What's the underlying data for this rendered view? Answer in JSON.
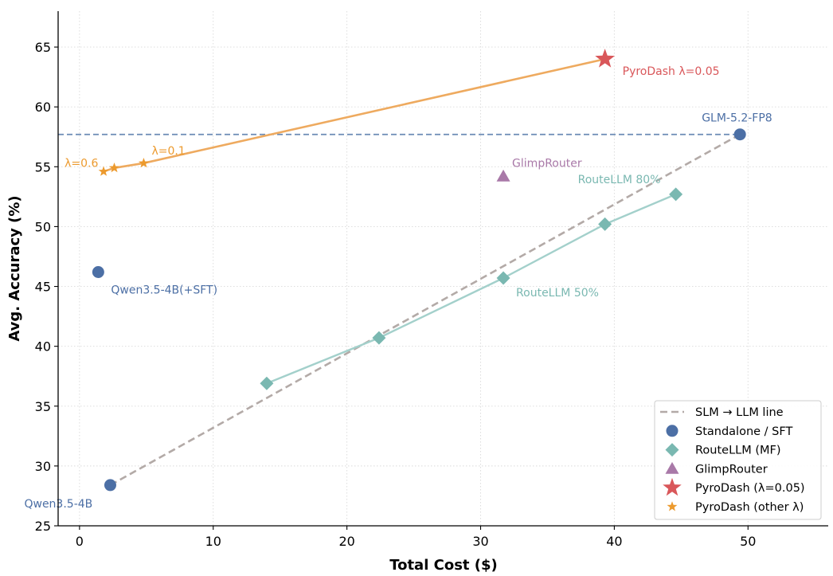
{
  "chart_data": {
    "type": "scatter",
    "xlabel": "Total Cost ($)",
    "ylabel": "Avg. Accuracy (%)",
    "xlim": [
      -1.6,
      56
    ],
    "ylim": [
      25,
      68
    ],
    "xticks": [
      0,
      10,
      20,
      30,
      40,
      50
    ],
    "yticks": [
      25,
      30,
      35,
      40,
      45,
      50,
      55,
      60,
      65
    ],
    "grid": true,
    "legend_placement": "lower-right",
    "reference_lines": {
      "slm_llm_line": {
        "x": [
          2.3,
          49.4
        ],
        "y": [
          28.4,
          57.7
        ],
        "color": "#b3aaa7"
      },
      "llm_hline": {
        "y": 57.7,
        "x_end": 49.4,
        "color": "#6b8bb5"
      }
    },
    "series": [
      {
        "name": "Standalone / SFT",
        "marker": "circle",
        "color": "#4c6fa5",
        "points": [
          {
            "x": 2.3,
            "y": 28.4,
            "label": "Qwen3.5-4B"
          },
          {
            "x": 1.4,
            "y": 46.2,
            "label": "Qwen3.5-4B(+SFT)"
          },
          {
            "x": 49.4,
            "y": 57.7,
            "label": "GLM-5.2-FP8"
          }
        ]
      },
      {
        "name": "RouteLLM (MF)",
        "marker": "diamond",
        "color": "#7ab8b1",
        "connected": true,
        "points": [
          {
            "x": 14.0,
            "y": 36.9,
            "label": ""
          },
          {
            "x": 22.4,
            "y": 40.7,
            "label": ""
          },
          {
            "x": 31.7,
            "y": 45.7,
            "label": "RouteLLM 50%"
          },
          {
            "x": 39.3,
            "y": 50.2,
            "label": ""
          },
          {
            "x": 44.6,
            "y": 52.7,
            "label": "RouteLLM 80%"
          }
        ]
      },
      {
        "name": "GlimpRouter",
        "marker": "triangle",
        "color": "#a979a8",
        "points": [
          {
            "x": 31.7,
            "y": 54.2,
            "label": "GlimpRouter"
          }
        ]
      },
      {
        "name": "PyroDash (λ=0.05)",
        "marker": "star-large",
        "color": "#d9575a",
        "points": [
          {
            "x": 39.3,
            "y": 64.0,
            "label": "PyroDash λ=0.05"
          }
        ]
      },
      {
        "name": "PyroDash (other λ)",
        "marker": "star-small",
        "color": "#ec9a2e",
        "connected": true,
        "points": [
          {
            "x": 1.8,
            "y": 54.6,
            "label": "λ=0.6"
          },
          {
            "x": 2.6,
            "y": 54.9,
            "label": ""
          },
          {
            "x": 4.8,
            "y": 55.3,
            "label": "λ=0.1"
          }
        ]
      }
    ],
    "pyrodash_line_color": "#eeaa5f",
    "legend": [
      {
        "label": "SLM → LLM line",
        "symbol": "dashed-line",
        "color": "#b3aaa7"
      },
      {
        "label": "Standalone / SFT",
        "symbol": "circle",
        "color": "#4c6fa5"
      },
      {
        "label": "RouteLLM (MF)",
        "symbol": "diamond",
        "color": "#7ab8b1"
      },
      {
        "label": "GlimpRouter",
        "symbol": "triangle",
        "color": "#a979a8"
      },
      {
        "label": "PyroDash (λ=0.05)",
        "symbol": "star-large",
        "color": "#d9575a"
      },
      {
        "label": "PyroDash (other λ)",
        "symbol": "star-small",
        "color": "#ec9a2e"
      }
    ]
  }
}
